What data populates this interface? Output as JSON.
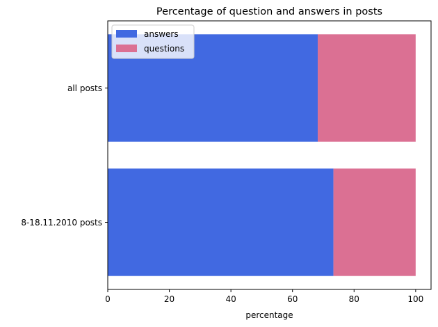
{
  "chart_data": {
    "type": "bar",
    "orientation": "horizontal",
    "stacked": true,
    "title": "Percentage of question and answers in posts",
    "xlabel": "percentage",
    "ylabel": "",
    "xlim": [
      0,
      105
    ],
    "x_ticks": [
      0,
      20,
      40,
      60,
      80,
      100
    ],
    "categories": [
      "all posts",
      "8-18.11.2010 posts"
    ],
    "series": [
      {
        "name": "answers",
        "color": "#4169e1",
        "values": [
          68.2,
          73.3
        ]
      },
      {
        "name": "questions",
        "color": "#db7093",
        "values": [
          31.8,
          26.7
        ]
      }
    ],
    "legend": {
      "position": "top-left"
    },
    "grid": false
  }
}
